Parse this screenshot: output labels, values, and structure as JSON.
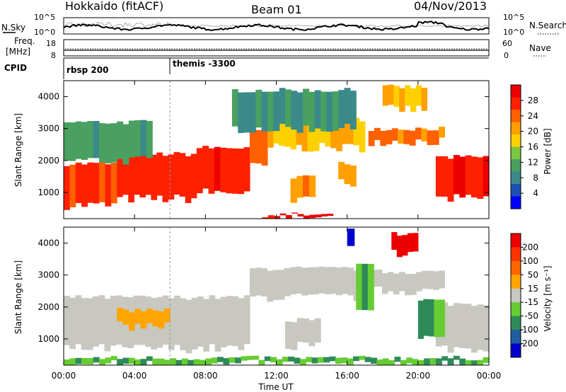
{
  "header": {
    "radar": "Hokkaido (fitACF)",
    "beam": "Beam 01",
    "date": "04/Nov/2013"
  },
  "noise_panel": {
    "left_label": "N.Sky",
    "right_label": "N.Search",
    "left_ticks": [
      "10^5",
      "10^0"
    ],
    "right_ticks": [
      "10^5",
      "10^0"
    ]
  },
  "freq_panel": {
    "left_label_1": "Freq.",
    "left_label_2": "[MHz]",
    "left_ticks": [
      "18",
      "8"
    ],
    "right_label": "Nave",
    "right_ticks": [
      "60",
      "0"
    ]
  },
  "cpid_panel": {
    "label": "CPID",
    "modes": [
      {
        "name": "rbsp 200",
        "start_hour": 0
      },
      {
        "name": "themis -3300",
        "start_hour": 6
      }
    ]
  },
  "x_axis": {
    "label": "Time UT",
    "ticks": [
      "00:00",
      "04:00",
      "08:00",
      "12:00",
      "16:00",
      "20:00",
      "00:00"
    ],
    "range_hours": [
      0,
      24
    ]
  },
  "power_panel": {
    "ylabel": "Slant Range [km]",
    "yticks": [
      "4000",
      "3000",
      "2000",
      "1000"
    ],
    "colorbar_label": "Power [dB]",
    "colorbar_ticks": [
      "28",
      "24",
      "20",
      "16",
      "12",
      "8",
      "4"
    ]
  },
  "velocity_panel": {
    "ylabel": "Slant Range [km]",
    "yticks": [
      "4000",
      "3000",
      "2000",
      "1000"
    ],
    "colorbar_label": "Velocity [m s⁻¹]",
    "colorbar_ticks": [
      "200",
      "100",
      "50",
      "15",
      "-15",
      "-50",
      "-100",
      "-200"
    ]
  },
  "colors": {
    "power_scale": [
      "#0000ff",
      "#1e4fb4",
      "#3a8a8a",
      "#4aa060",
      "#7ac840",
      "#ffd000",
      "#ffa000",
      "#ff6000",
      "#ff2000",
      "#ee0000"
    ],
    "velocity_scale": [
      "#0000cc",
      "#1f5fa0",
      "#2e8b57",
      "#66cc33",
      "#c8c8c0",
      "#ffa500",
      "#ff6600",
      "#ff3300",
      "#ee0000"
    ]
  },
  "chart_data": [
    {
      "type": "heatmap",
      "title": "Power [dB]",
      "xlabel": "Time UT",
      "ylabel": "Slant Range [km]",
      "xlim": [
        0,
        24
      ],
      "ylim": [
        180,
        4500
      ],
      "zlim": [
        0,
        30
      ],
      "grid": false,
      "regions": [
        {
          "t0": 0.0,
          "t1": 3.0,
          "r0": 600,
          "r1": 1900,
          "level": 26
        },
        {
          "t0": 3.0,
          "t1": 7.5,
          "r0": 800,
          "r1": 2200,
          "level": 26
        },
        {
          "t0": 7.5,
          "t1": 10.5,
          "r0": 1000,
          "r1": 2400,
          "level": 27
        },
        {
          "t0": 10.5,
          "t1": 11.5,
          "r0": 1800,
          "r1": 2900,
          "level": 22
        },
        {
          "t0": 11.5,
          "t1": 17.0,
          "r0": 2400,
          "r1": 3300,
          "level": 18
        },
        {
          "t0": 12.8,
          "t1": 14.2,
          "r0": 800,
          "r1": 1500,
          "level": 22
        },
        {
          "t0": 15.5,
          "t1": 16.5,
          "r0": 1300,
          "r1": 1900,
          "level": 20
        },
        {
          "t0": 17.2,
          "t1": 21.5,
          "r0": 2600,
          "r1": 3000,
          "level": 22
        },
        {
          "t0": 18.0,
          "t1": 20.5,
          "r0": 3600,
          "r1": 4300,
          "level": 18
        },
        {
          "t0": 21.0,
          "t1": 24.0,
          "r0": 800,
          "r1": 2100,
          "level": 28
        },
        {
          "t0": 0.0,
          "t1": 5.0,
          "r0": 2000,
          "r1": 3200,
          "level": 10
        },
        {
          "t0": 9.5,
          "t1": 16.5,
          "r0": 3000,
          "r1": 4200,
          "level": 8
        },
        {
          "t0": 11.2,
          "t1": 15.2,
          "r0": 200,
          "r1": 300,
          "level": 29
        }
      ]
    },
    {
      "type": "heatmap",
      "title": "Velocity [m s⁻¹]",
      "xlabel": "Time UT",
      "ylabel": "Slant Range [km]",
      "xlim": [
        0,
        24
      ],
      "ylim": [
        180,
        4500
      ],
      "zlim": [
        -200,
        200
      ],
      "grid": false,
      "regions": [
        {
          "t0": 0.0,
          "t1": 10.5,
          "r0": 700,
          "r1": 2300,
          "value": 0
        },
        {
          "t0": 10.5,
          "t1": 17.0,
          "r0": 2300,
          "r1": 3200,
          "value": 0
        },
        {
          "t0": 17.0,
          "t1": 21.5,
          "r0": 2500,
          "r1": 3100,
          "value": 0
        },
        {
          "t0": 21.0,
          "t1": 24.0,
          "r0": 700,
          "r1": 2100,
          "value": 0
        },
        {
          "t0": 12.5,
          "t1": 14.5,
          "r0": 800,
          "r1": 1600,
          "value": 0
        },
        {
          "t0": 3.0,
          "t1": 6.0,
          "r0": 1400,
          "r1": 1900,
          "value": -40
        },
        {
          "t0": 20.0,
          "t1": 21.5,
          "r0": 1000,
          "r1": 2200,
          "value": 30
        },
        {
          "t0": 16.5,
          "t1": 17.5,
          "r0": 1800,
          "r1": 3300,
          "value": 30
        },
        {
          "t0": 18.5,
          "t1": 20.0,
          "r0": 3700,
          "r1": 4300,
          "value": -180
        },
        {
          "t0": 16.0,
          "t1": 16.4,
          "r0": 3800,
          "r1": 4400,
          "value": 180
        },
        {
          "t0": 0.0,
          "t1": 24.0,
          "r0": 200,
          "r1": 400,
          "value": 30
        }
      ]
    }
  ]
}
